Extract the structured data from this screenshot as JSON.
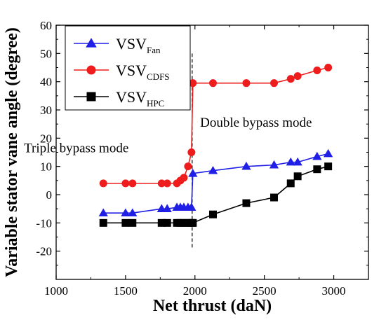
{
  "chart_data": {
    "type": "line",
    "xlabel": "Net thrust (daN)",
    "ylabel": "Variable stator vane angle (degree)",
    "xlim": [
      1000,
      3250
    ],
    "ylim": [
      -30,
      60
    ],
    "xticks": [
      1000,
      1500,
      2000,
      2500,
      3000
    ],
    "yticks": [
      -20,
      -10,
      0,
      10,
      20,
      30,
      40,
      50,
      60
    ],
    "grid": false,
    "legend_position": "top-left",
    "annotations": [
      {
        "text": "Triple bypass mode",
        "x": 1145,
        "y": 15
      },
      {
        "text": "Double bypass mode",
        "x": 2440,
        "y": 24
      }
    ],
    "mode_switch_x": 1980,
    "series": [
      {
        "name": "VSV",
        "subscript": "Fan",
        "color": "#1f1fe6",
        "marker": "triangle",
        "x": [
          1340,
          1500,
          1550,
          1760,
          1800,
          1870,
          1895,
          1920,
          1950,
          1975,
          1985,
          2130,
          2370,
          2570,
          2690,
          2740,
          2880,
          2960
        ],
        "y": [
          -6.5,
          -6.5,
          -6.5,
          -5,
          -5,
          -4.5,
          -4.5,
          -4.5,
          -4.5,
          -4.5,
          7.5,
          8.5,
          10,
          10.5,
          11.5,
          11.5,
          13.5,
          14.5
        ]
      },
      {
        "name": "VSV",
        "subscript": "CDFS",
        "color": "#ee1c1c",
        "marker": "circle",
        "x": [
          1340,
          1500,
          1550,
          1760,
          1800,
          1870,
          1895,
          1920,
          1950,
          1975,
          1985,
          2130,
          2370,
          2570,
          2690,
          2740,
          2880,
          2960
        ],
        "y": [
          4,
          4,
          4,
          4,
          4,
          4,
          5,
          6,
          10,
          15,
          39.5,
          39.5,
          39.5,
          39.5,
          41,
          42,
          44,
          45
        ]
      },
      {
        "name": "VSV",
        "subscript": "HPC",
        "color": "#000000",
        "marker": "square",
        "x": [
          1340,
          1500,
          1550,
          1760,
          1800,
          1870,
          1895,
          1920,
          1950,
          1975,
          1985,
          2130,
          2370,
          2570,
          2690,
          2740,
          2880,
          2960
        ],
        "y": [
          -10,
          -10,
          -10,
          -10,
          -10,
          -10,
          -10,
          -10,
          -10,
          -10,
          -10,
          -7,
          -3,
          -1,
          4,
          6.5,
          9,
          10
        ]
      }
    ]
  }
}
